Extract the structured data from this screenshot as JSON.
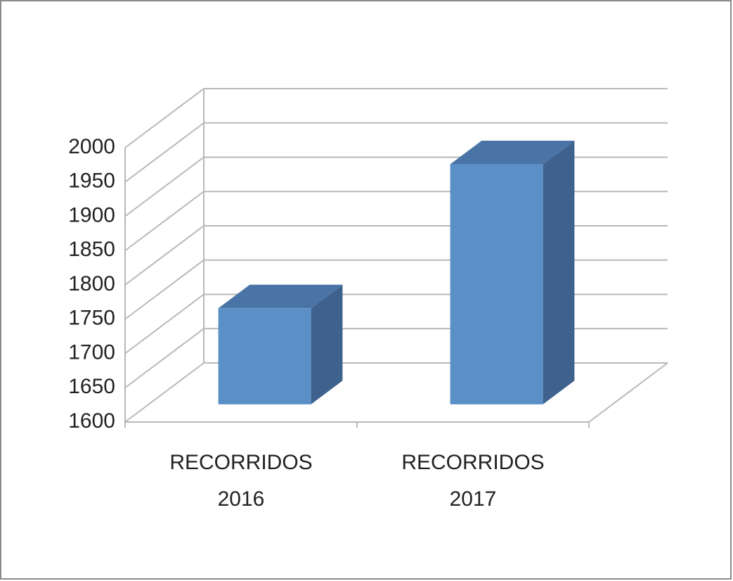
{
  "chart_data": {
    "type": "bar3d",
    "categories": [
      "RECORRIDOS 2016",
      "RECORRIDOS 2017"
    ],
    "values": [
      1740,
      1950
    ],
    "color": "#5b8fc7",
    "ylim": [
      1600,
      2000
    ],
    "yticks": [
      1600,
      1650,
      1700,
      1750,
      1800,
      1850,
      1900,
      1950,
      2000
    ],
    "grid": true
  }
}
